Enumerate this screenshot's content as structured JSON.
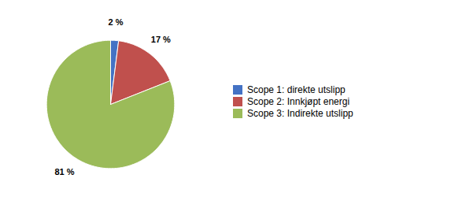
{
  "chart_data": {
    "type": "pie",
    "categories": [
      "Scope 1: direkte utslipp",
      "Scope 2: Innkjøpt energi",
      "Scope 3: Indirekte utslipp"
    ],
    "values": [
      2,
      17,
      81
    ],
    "value_labels": [
      "2 %",
      "17 %",
      "81 %"
    ],
    "colors": [
      "#4472C4",
      "#C0504D",
      "#9BBB59"
    ],
    "data_labels": true,
    "legend": "right"
  }
}
